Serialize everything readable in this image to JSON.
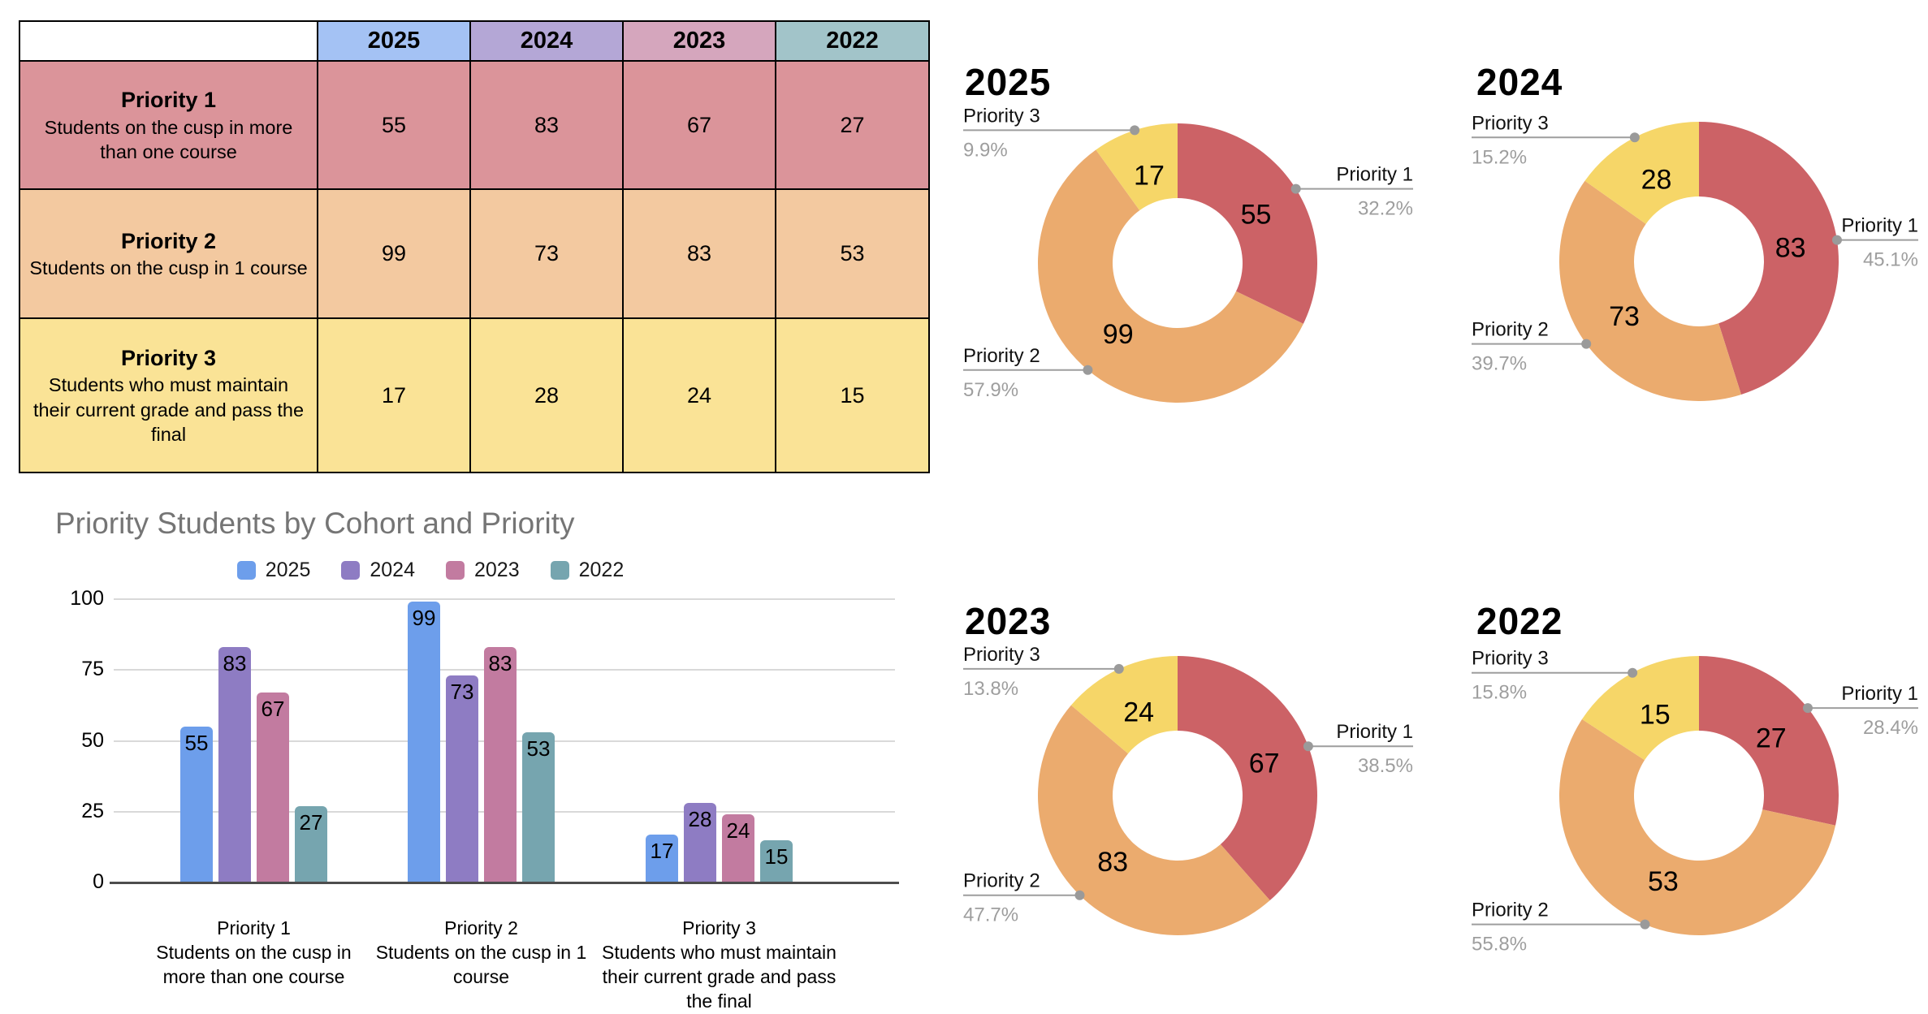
{
  "table": {
    "columns": [
      {
        "label": "2025",
        "color": "#a4c2f4"
      },
      {
        "label": "2024",
        "color": "#b4a7d6"
      },
      {
        "label": "2023",
        "color": "#d5a6bd"
      },
      {
        "label": "2022",
        "color": "#a2c4c9"
      }
    ],
    "rows": [
      {
        "title": "Priority 1",
        "description": "Students on the cusp in more than one course",
        "color": "#db949a",
        "values": [
          55,
          83,
          67,
          27
        ]
      },
      {
        "title": "Priority 2",
        "description": "Students on the cusp in 1 course",
        "color": "#f3c9a0",
        "values": [
          99,
          73,
          83,
          53
        ]
      },
      {
        "title": "Priority 3",
        "description": "Students who must maintain their current grade and pass the final",
        "color": "#fae396",
        "values": [
          17,
          28,
          24,
          15
        ]
      }
    ]
  },
  "chart_data": [
    {
      "type": "bar",
      "title": "Priority Students by Cohort and Priority",
      "title_color": "#757575",
      "categories": [
        "Priority 1\nStudents on the cusp in\nmore than one course",
        "Priority 2\nStudents on the cusp in 1\ncourse",
        "Priority 3\nStudents who must maintain\ntheir current grade and pass\nthe final"
      ],
      "series": [
        {
          "name": "2025",
          "color": "#6d9eeb",
          "values": [
            55,
            99,
            17
          ]
        },
        {
          "name": "2024",
          "color": "#8e7cc3",
          "values": [
            83,
            73,
            28
          ]
        },
        {
          "name": "2023",
          "color": "#c27ba0",
          "values": [
            67,
            83,
            24
          ]
        },
        {
          "name": "2022",
          "color": "#76a5af",
          "values": [
            27,
            53,
            15
          ]
        }
      ],
      "ylim": [
        0,
        100
      ],
      "yticks": [
        0,
        25,
        50,
        75,
        100
      ],
      "grid": true,
      "legend_position": "top"
    },
    {
      "type": "pie",
      "donut": true,
      "title": "2025",
      "slices": [
        {
          "label": "Priority 1",
          "value": 55,
          "pct": "32.2%"
        },
        {
          "label": "Priority 2",
          "value": 99,
          "pct": "57.9%"
        },
        {
          "label": "Priority 3",
          "value": 17,
          "pct": "9.9%"
        }
      ]
    },
    {
      "type": "pie",
      "donut": true,
      "title": "2024",
      "slices": [
        {
          "label": "Priority 1",
          "value": 83,
          "pct": "45.1%"
        },
        {
          "label": "Priority 2",
          "value": 73,
          "pct": "39.7%"
        },
        {
          "label": "Priority 3",
          "value": 28,
          "pct": "15.2%"
        }
      ]
    },
    {
      "type": "pie",
      "donut": true,
      "title": "2023",
      "slices": [
        {
          "label": "Priority 1",
          "value": 67,
          "pct": "38.5%"
        },
        {
          "label": "Priority 2",
          "value": 83,
          "pct": "47.7%"
        },
        {
          "label": "Priority 3",
          "value": 24,
          "pct": "13.8%"
        }
      ]
    },
    {
      "type": "pie",
      "donut": true,
      "title": "2022",
      "slices": [
        {
          "label": "Priority 1",
          "value": 27,
          "pct": "28.4%"
        },
        {
          "label": "Priority 2",
          "value": 53,
          "pct": "55.8%"
        },
        {
          "label": "Priority 3",
          "value": 15,
          "pct": "15.8%"
        }
      ]
    }
  ],
  "donut_colors": {
    "Priority 1": "#cc6266",
    "Priority 2": "#ebab6e",
    "Priority 3": "#f6d668"
  },
  "donut_label_style": {
    "name_color": "#111111",
    "pct_color": "#9e9e9e",
    "leader_color": "#9e9e9e"
  }
}
